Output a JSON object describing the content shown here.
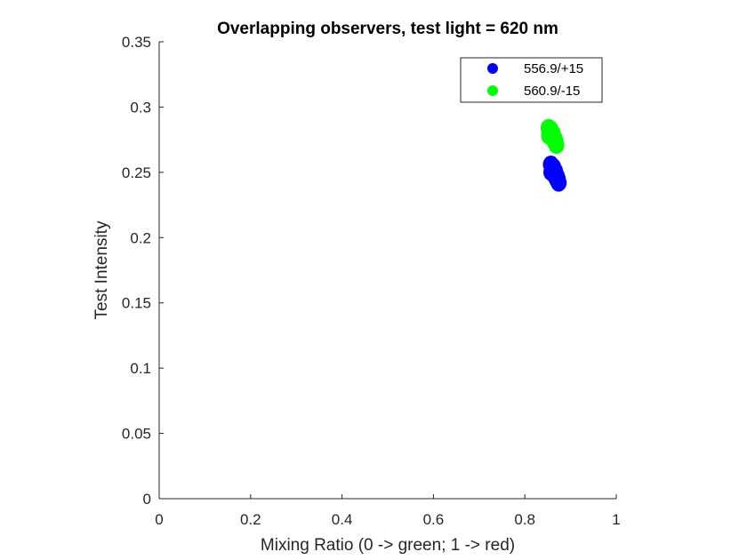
{
  "chart_data": {
    "type": "scatter",
    "title": "Overlapping observers, test light = 620 nm",
    "xlabel": "Mixing Ratio (0 -> green; 1 -> red)",
    "ylabel": "Test Intensity",
    "xlim": [
      0,
      1
    ],
    "ylim": [
      0,
      0.35
    ],
    "xticks": [
      0,
      0.2,
      0.4,
      0.6,
      0.8,
      1
    ],
    "xtick_labels": [
      "0",
      "0.2",
      "0.4",
      "0.6",
      "0.8",
      "1"
    ],
    "yticks": [
      0,
      0.05,
      0.1,
      0.15,
      0.2,
      0.25,
      0.3,
      0.35
    ],
    "ytick_labels": [
      "0",
      "0.05",
      "0.1",
      "0.15",
      "0.2",
      "0.25",
      "0.3",
      "0.35"
    ],
    "grid": false,
    "legend_position": "top-right",
    "series": [
      {
        "name": "556.9/+15",
        "color": "#0000ff",
        "x": [
          0.857,
          0.859,
          0.862,
          0.865,
          0.868,
          0.871,
          0.874,
          0.862,
          0.866,
          0.87,
          0.858,
          0.872
        ],
        "y": [
          0.256,
          0.253,
          0.25,
          0.248,
          0.246,
          0.244,
          0.242,
          0.254,
          0.251,
          0.247,
          0.25,
          0.245
        ]
      },
      {
        "name": "560.9/-15",
        "color": "#00ff00",
        "x": [
          0.852,
          0.854,
          0.857,
          0.86,
          0.863,
          0.866,
          0.869,
          0.856,
          0.861,
          0.865,
          0.853,
          0.867
        ],
        "y": [
          0.284,
          0.281,
          0.279,
          0.277,
          0.275,
          0.273,
          0.271,
          0.283,
          0.28,
          0.276,
          0.278,
          0.274
        ]
      }
    ]
  }
}
